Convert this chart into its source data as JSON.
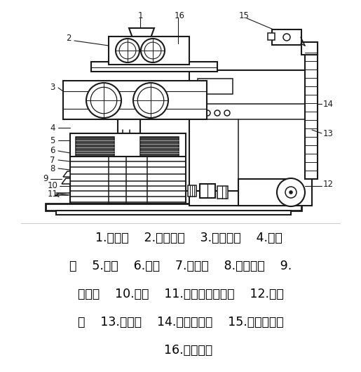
{
  "background_color": "#ffffff",
  "text_color": "#000000",
  "caption_lines": [
    "    1.入料斗    2.混合搅龙    3.输送搅龙    4.检视",
    "窗    5.压辊    6.平模    7.切料刀    8.出料刮板    9.",
    "出料口    10.主轴    11.锥齿轮传动机构    12.主电",
    "机    13.电控箱    14.链传动机构    15.链传动电机",
    "    16.蒸汽入口"
  ],
  "font_size_caption": 12.5,
  "fig_width": 5.15,
  "fig_height": 5.3,
  "dpi": 100
}
